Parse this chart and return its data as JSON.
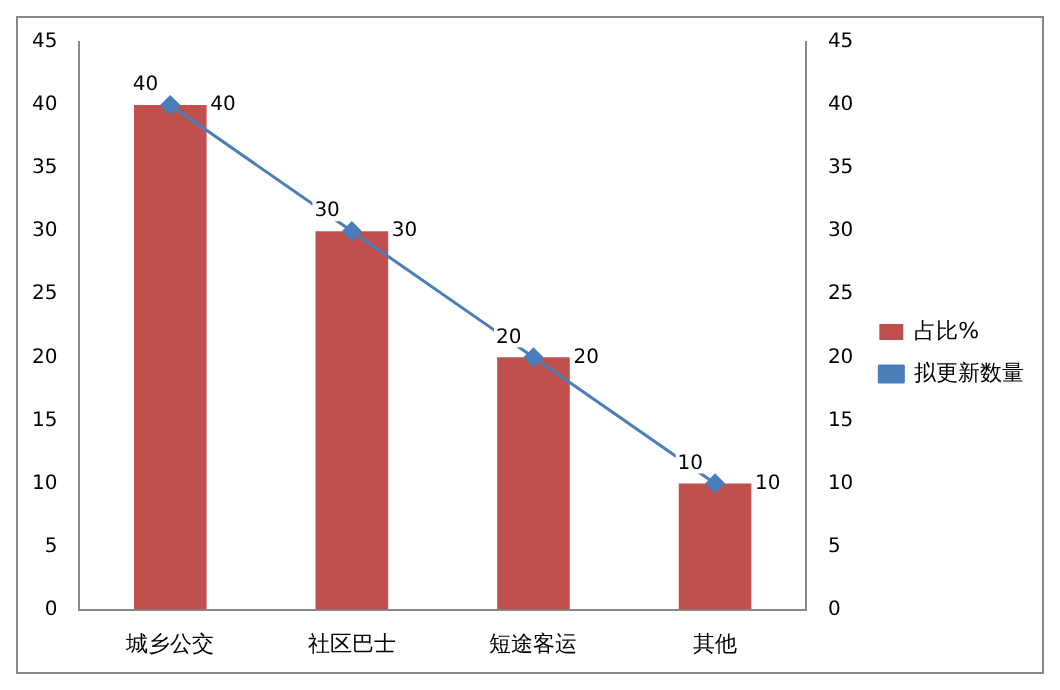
{
  "chart_data": {
    "type": "bar",
    "categories": [
      "城乡公交",
      "社区巴士",
      "短途客运",
      "其他"
    ],
    "series": [
      {
        "name": "占比%",
        "color": "#c0504d",
        "values": [
          40,
          30,
          20,
          10
        ]
      },
      {
        "name": "拟更新数量",
        "type": "line",
        "axis": "y2",
        "color": "#4a7ebb",
        "marker": "diamond",
        "values": [
          40,
          30,
          20,
          10
        ]
      }
    ],
    "ylim": [
      0,
      45
    ],
    "yticks": [
      0,
      5,
      10,
      15,
      20,
      25,
      30,
      35,
      40,
      45
    ],
    "y2lim": [
      0,
      45
    ],
    "y2ticks": [
      0,
      5,
      10,
      15,
      20,
      25,
      30,
      35,
      40,
      45
    ],
    "grid": false,
    "legend": "right",
    "data_labels": true
  }
}
